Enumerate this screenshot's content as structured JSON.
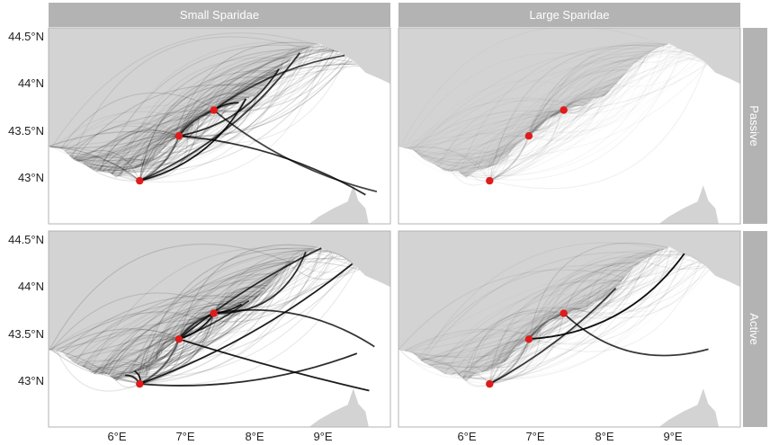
{
  "figure": {
    "columns": [
      "Small Sparidae",
      "Large Sparidae"
    ],
    "rows": [
      "Passive",
      "Active"
    ],
    "lat_ticks": [
      "44.5°N",
      "44°N",
      "43.5°N",
      "43°N"
    ],
    "lon_ticks": [
      "6°E",
      "7°E",
      "8°E",
      "9°E"
    ]
  },
  "chart_data": {
    "type": "connectivity-map",
    "x_range": [
      5.1,
      9.9
    ],
    "y_range": [
      42.55,
      44.6
    ],
    "x_ticks": [
      6,
      7,
      8,
      9
    ],
    "y_ticks": [
      44.5,
      44.0,
      43.5,
      43.0
    ],
    "colors": {
      "sea": "#ffffff",
      "land": "#d3d3d3",
      "strip": "#b3b3b3",
      "site": "#e01b1b",
      "link": "#000000"
    },
    "sites": [
      {
        "lon": 7.42,
        "lat": 43.74
      },
      {
        "lon": 6.93,
        "lat": 43.47
      },
      {
        "lon": 6.38,
        "lat": 43.0
      }
    ],
    "panels": [
      {
        "column": "Small Sparidae",
        "row": "Passive",
        "strength": 1.0,
        "strong_links": 7
      },
      {
        "column": "Large Sparidae",
        "row": "Passive",
        "strength": 0.35,
        "strong_links": 0
      },
      {
        "column": "Small Sparidae",
        "row": "Active",
        "strength": 1.1,
        "strong_links": 12
      },
      {
        "column": "Large Sparidae",
        "row": "Active",
        "strength": 0.55,
        "strong_links": 3
      }
    ]
  }
}
